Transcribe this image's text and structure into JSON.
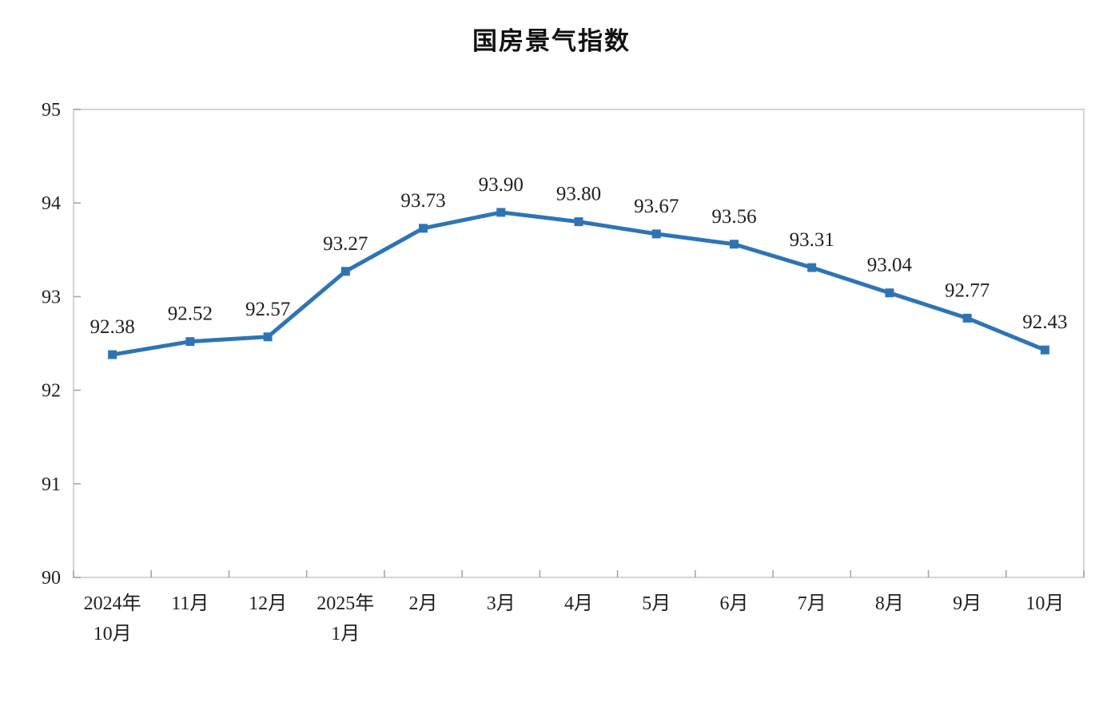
{
  "page": {
    "background": "#ffffff"
  },
  "chart_data": {
    "type": "line",
    "title": "国房景气指数",
    "categories": [
      "2024年\n10月",
      "11月",
      "12月",
      "2025年\n1月",
      "2月",
      "3月",
      "4月",
      "5月",
      "6月",
      "7月",
      "8月",
      "9月",
      "10月"
    ],
    "values": [
      92.38,
      92.52,
      92.57,
      93.27,
      93.73,
      93.9,
      93.8,
      93.67,
      93.56,
      93.31,
      93.04,
      92.77,
      92.43
    ],
    "data_labels": [
      "92.38",
      "92.52",
      "92.57",
      "93.27",
      "93.73",
      "93.90",
      "93.80",
      "93.67",
      "93.56",
      "93.31",
      "93.04",
      "92.77",
      "92.43"
    ],
    "ylim": [
      90,
      95
    ],
    "y_ticks": [
      90,
      91,
      92,
      93,
      94,
      95
    ],
    "xlabel": "",
    "ylabel": "",
    "grid": false,
    "legend_position": "none",
    "marker": "square",
    "colors": {
      "line": "#2E74B5",
      "marker": "#2E74B5",
      "plot_border": "#c9c9c9",
      "tick": "#a6a6a6",
      "label_text": "#1f1f1f",
      "title_text": "#111111"
    }
  }
}
